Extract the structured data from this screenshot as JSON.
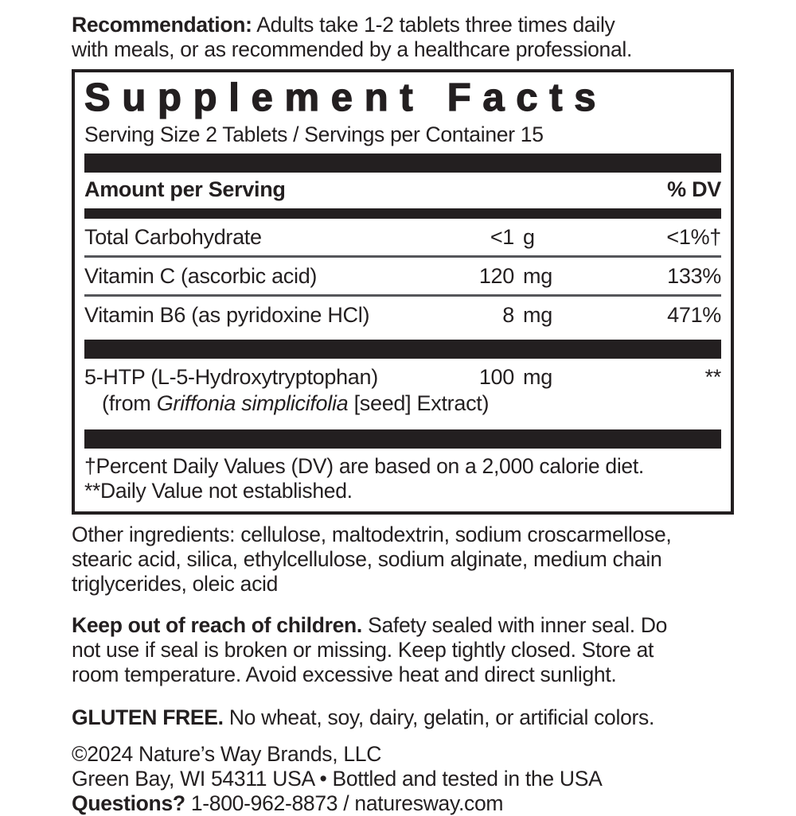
{
  "recommendation": {
    "label": "Recommendation:",
    "line1_rest": " Adults take 1-2 tablets three times daily",
    "line2": "with meals, or as recommended by a healthcare professional."
  },
  "panel": {
    "title": "Supplement Facts",
    "serving_line": "Serving Size 2 Tablets / Servings per Container 15",
    "columns": {
      "amount": "Amount per Serving",
      "dv": "% DV"
    },
    "rows": [
      {
        "name": "Total Carbohydrate",
        "value": "<1",
        "unit": "g",
        "dv": "<1%†"
      },
      {
        "name": "Vitamin C (ascorbic acid)",
        "value": "120",
        "unit": "mg",
        "dv": "133%"
      },
      {
        "name": "Vitamin B6 (as pyridoxine HCl)",
        "value": "8",
        "unit": "mg",
        "dv": "471%"
      }
    ],
    "htp": {
      "name": "5-HTP (L-5-Hydroxytryptophan)",
      "value": "100",
      "unit": "mg",
      "dv": "**",
      "sub_prefix": "(from ",
      "sub_italic": "Griffonia simplicifolia",
      "sub_suffix": " [seed] Extract)"
    },
    "footnote1": "†Percent Daily Values (DV) are based on a 2,000 calorie diet.",
    "footnote2": "**Daily Value not established."
  },
  "other_ingredients": {
    "line1": "Other ingredients: cellulose, maltodextrin, sodium croscarmellose,",
    "line2": "stearic acid, silica, ethylcellulose, sodium alginate, medium chain",
    "line3": "triglycerides, oleic acid"
  },
  "caution": {
    "label": "Keep out of reach of children.",
    "line1_rest": " Safety sealed with inner seal. Do",
    "line2": "not use if seal is broken or missing. Keep tightly closed. Store at",
    "line3": "room temperature. Avoid excessive heat and direct sunlight."
  },
  "gluten": {
    "label": "GLUTEN FREE.",
    "rest": " No wheat, soy, dairy, gelatin, or artificial colors."
  },
  "footer": {
    "line1": "©2024 Nature’s Way Brands, LLC",
    "line2": "Green Bay, WI 54311 USA • Bottled and tested in the USA",
    "questions_label": "Questions?",
    "questions_rest": " 1-800-962-8873 / naturesway.com"
  },
  "colors": {
    "ink": "#231f20"
  }
}
